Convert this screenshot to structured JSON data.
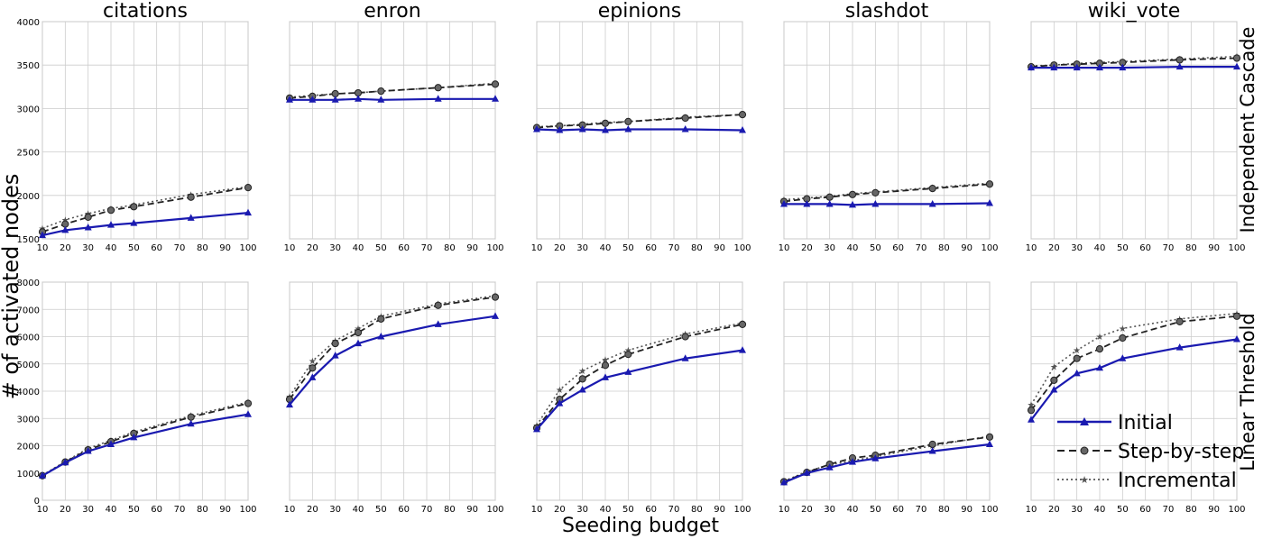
{
  "figure": {
    "ylabel": "# of activated nodes",
    "xlabel": "Seeding budget",
    "row_labels": [
      "Independent Cascade",
      "Linear Threshold"
    ],
    "column_titles": [
      "citations",
      "enron",
      "epinions",
      "slashdot",
      "wiki_vote"
    ]
  },
  "legend": {
    "placement": "lower-right of last panel",
    "entries": [
      {
        "name": "Initial",
        "color": "#1a1ab0",
        "linestyle": "solid",
        "marker": "triangle"
      },
      {
        "name": "Step-by-step",
        "color": "#222222",
        "linestyle": "dashed",
        "marker": "circle"
      },
      {
        "name": "Incremental",
        "color": "#555555",
        "linestyle": "dotted",
        "marker": "star"
      }
    ]
  },
  "colors": {
    "initial": "#1a1ab0",
    "stepbystep": "#222222",
    "incremental": "#555555",
    "grid": "#cccccc",
    "marker_fill": "#666666"
  },
  "chart_data": [
    {
      "type": "line",
      "title": "citations",
      "row": "Independent Cascade",
      "x": [
        10,
        20,
        30,
        40,
        50,
        75,
        100
      ],
      "xlim": [
        10,
        100
      ],
      "ylim": [
        1500,
        4000
      ],
      "xticks": [
        10,
        20,
        30,
        40,
        50,
        60,
        70,
        80,
        90,
        100
      ],
      "yticks": [
        1500,
        2000,
        2500,
        3000,
        3500,
        4000
      ],
      "grid": true,
      "series": [
        {
          "name": "Initial",
          "values": [
            1540,
            1600,
            1630,
            1660,
            1680,
            1740,
            1800
          ]
        },
        {
          "name": "Step-by-step",
          "values": [
            1580,
            1670,
            1750,
            1830,
            1870,
            1980,
            2090
          ]
        },
        {
          "name": "Incremental",
          "values": [
            1620,
            1720,
            1790,
            1850,
            1890,
            2010,
            2100
          ]
        }
      ]
    },
    {
      "type": "line",
      "title": "enron",
      "row": "Independent Cascade",
      "x": [
        10,
        20,
        30,
        40,
        50,
        75,
        100
      ],
      "xlim": [
        10,
        100
      ],
      "ylim": [
        1500,
        4000
      ],
      "xticks": [
        10,
        20,
        30,
        40,
        50,
        60,
        70,
        80,
        90,
        100
      ],
      "yticks": [],
      "grid": true,
      "series": [
        {
          "name": "Initial",
          "values": [
            3100,
            3100,
            3100,
            3110,
            3100,
            3110,
            3110
          ]
        },
        {
          "name": "Step-by-step",
          "values": [
            3120,
            3140,
            3170,
            3180,
            3200,
            3240,
            3280
          ]
        },
        {
          "name": "Incremental",
          "values": [
            3130,
            3150,
            3170,
            3180,
            3200,
            3240,
            3290
          ]
        }
      ]
    },
    {
      "type": "line",
      "title": "epinions",
      "row": "Independent Cascade",
      "x": [
        10,
        20,
        30,
        40,
        50,
        75,
        100
      ],
      "xlim": [
        10,
        100
      ],
      "ylim": [
        1500,
        4000
      ],
      "xticks": [
        10,
        20,
        30,
        40,
        50,
        60,
        70,
        80,
        90,
        100
      ],
      "yticks": [],
      "grid": true,
      "series": [
        {
          "name": "Initial",
          "values": [
            2760,
            2750,
            2760,
            2750,
            2760,
            2760,
            2750
          ]
        },
        {
          "name": "Step-by-step",
          "values": [
            2780,
            2800,
            2810,
            2830,
            2850,
            2890,
            2930
          ]
        },
        {
          "name": "Incremental",
          "values": [
            2790,
            2800,
            2820,
            2840,
            2850,
            2900,
            2930
          ]
        }
      ]
    },
    {
      "type": "line",
      "title": "slashdot",
      "row": "Independent Cascade",
      "x": [
        10,
        20,
        30,
        40,
        50,
        75,
        100
      ],
      "xlim": [
        10,
        100
      ],
      "ylim": [
        1500,
        4000
      ],
      "xticks": [
        10,
        20,
        30,
        40,
        50,
        60,
        70,
        80,
        90,
        100
      ],
      "yticks": [],
      "grid": true,
      "series": [
        {
          "name": "Initial",
          "values": [
            1900,
            1900,
            1900,
            1890,
            1900,
            1900,
            1910
          ]
        },
        {
          "name": "Step-by-step",
          "values": [
            1930,
            1960,
            1980,
            2010,
            2030,
            2080,
            2130
          ]
        },
        {
          "name": "Incremental",
          "values": [
            1950,
            1970,
            1990,
            2020,
            2040,
            2090,
            2140
          ]
        }
      ]
    },
    {
      "type": "line",
      "title": "wiki_vote",
      "row": "Independent Cascade",
      "x": [
        10,
        20,
        30,
        40,
        50,
        75,
        100
      ],
      "xlim": [
        10,
        100
      ],
      "ylim": [
        1500,
        4000
      ],
      "xticks": [
        10,
        20,
        30,
        40,
        50,
        60,
        70,
        80,
        90,
        100
      ],
      "yticks": [],
      "grid": true,
      "series": [
        {
          "name": "Initial",
          "values": [
            3470,
            3470,
            3470,
            3470,
            3470,
            3480,
            3480
          ]
        },
        {
          "name": "Step-by-step",
          "values": [
            3480,
            3500,
            3510,
            3520,
            3530,
            3560,
            3580
          ]
        },
        {
          "name": "Incremental",
          "values": [
            3490,
            3500,
            3520,
            3530,
            3540,
            3570,
            3600
          ]
        }
      ]
    },
    {
      "type": "line",
      "title": "",
      "row": "Linear Threshold",
      "x": [
        10,
        20,
        30,
        40,
        50,
        75,
        100
      ],
      "xlim": [
        10,
        100
      ],
      "ylim": [
        0,
        8000
      ],
      "xticks": [
        10,
        20,
        30,
        40,
        50,
        60,
        70,
        80,
        90,
        100
      ],
      "yticks": [
        0,
        1000,
        2000,
        3000,
        4000,
        5000,
        6000,
        7000,
        8000
      ],
      "grid": true,
      "series": [
        {
          "name": "Initial",
          "values": [
            900,
            1380,
            1800,
            2050,
            2300,
            2800,
            3150
          ]
        },
        {
          "name": "Step-by-step",
          "values": [
            900,
            1400,
            1850,
            2150,
            2450,
            3050,
            3550
          ]
        },
        {
          "name": "Incremental",
          "values": [
            920,
            1420,
            1900,
            2200,
            2500,
            3100,
            3600
          ]
        }
      ]
    },
    {
      "type": "line",
      "title": "",
      "row": "Linear Threshold",
      "x": [
        10,
        20,
        30,
        40,
        50,
        75,
        100
      ],
      "xlim": [
        10,
        100
      ],
      "ylim": [
        0,
        8000
      ],
      "xticks": [
        10,
        20,
        30,
        40,
        50,
        60,
        70,
        80,
        90,
        100
      ],
      "yticks": [],
      "grid": true,
      "series": [
        {
          "name": "Initial",
          "values": [
            3500,
            4500,
            5300,
            5750,
            6000,
            6450,
            6750
          ]
        },
        {
          "name": "Step-by-step",
          "values": [
            3700,
            4850,
            5750,
            6150,
            6650,
            7150,
            7450
          ]
        },
        {
          "name": "Incremental",
          "values": [
            3800,
            5100,
            5850,
            6300,
            6750,
            7200,
            7500
          ]
        }
      ]
    },
    {
      "type": "line",
      "title": "",
      "row": "Linear Threshold",
      "x": [
        10,
        20,
        30,
        40,
        50,
        75,
        100
      ],
      "xlim": [
        10,
        100
      ],
      "ylim": [
        0,
        8000
      ],
      "xticks": [
        10,
        20,
        30,
        40,
        50,
        60,
        70,
        80,
        90,
        100
      ],
      "yticks": [],
      "grid": true,
      "series": [
        {
          "name": "Initial",
          "values": [
            2600,
            3550,
            4050,
            4500,
            4700,
            5200,
            5500
          ]
        },
        {
          "name": "Step-by-step",
          "values": [
            2650,
            3700,
            4450,
            4950,
            5350,
            6000,
            6450
          ]
        },
        {
          "name": "Incremental",
          "values": [
            2750,
            4050,
            4750,
            5150,
            5500,
            6100,
            6500
          ]
        }
      ]
    },
    {
      "type": "line",
      "title": "",
      "row": "Linear Threshold",
      "x": [
        10,
        20,
        30,
        40,
        50,
        75,
        100
      ],
      "xlim": [
        10,
        100
      ],
      "ylim": [
        0,
        8000
      ],
      "xticks": [
        10,
        20,
        30,
        40,
        50,
        60,
        70,
        80,
        90,
        100
      ],
      "yticks": [],
      "grid": true,
      "series": [
        {
          "name": "Initial",
          "values": [
            650,
            1000,
            1200,
            1400,
            1530,
            1800,
            2050
          ]
        },
        {
          "name": "Step-by-step",
          "values": [
            680,
            1020,
            1320,
            1550,
            1650,
            2050,
            2320
          ]
        },
        {
          "name": "Incremental",
          "values": [
            700,
            1050,
            1300,
            1450,
            1600,
            2000,
            2350
          ]
        }
      ]
    },
    {
      "type": "line",
      "title": "",
      "row": "Linear Threshold",
      "x": [
        10,
        20,
        30,
        40,
        50,
        75,
        100
      ],
      "xlim": [
        10,
        100
      ],
      "ylim": [
        0,
        8000
      ],
      "xticks": [
        10,
        20,
        30,
        40,
        50,
        60,
        70,
        80,
        90,
        100
      ],
      "yticks": [],
      "grid": true,
      "series": [
        {
          "name": "Initial",
          "values": [
            2950,
            4050,
            4650,
            4850,
            5200,
            5600,
            5900
          ]
        },
        {
          "name": "Step-by-step",
          "values": [
            3300,
            4400,
            5200,
            5550,
            5950,
            6550,
            6750
          ]
        },
        {
          "name": "Incremental",
          "values": [
            3500,
            4900,
            5500,
            6000,
            6300,
            6650,
            6850
          ]
        }
      ]
    }
  ]
}
